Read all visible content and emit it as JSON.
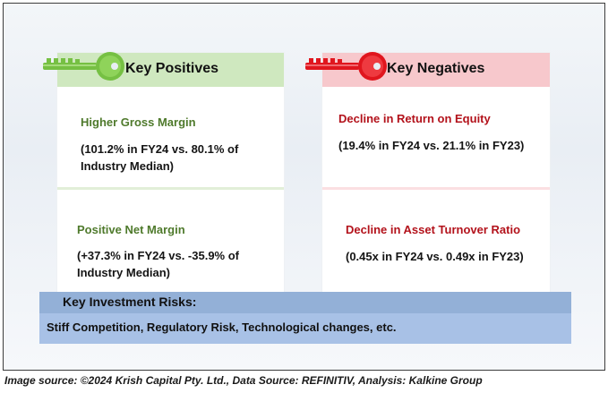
{
  "positives": {
    "heading": "Key Positives",
    "items": [
      {
        "title": "Higher Gross Margin",
        "line1": "(101.2% in FY24 vs. 80.1% of",
        "line2": "Industry Median)"
      },
      {
        "title": "Positive Net Margin",
        "line1": "(+37.3% in FY24 vs. -35.9% of",
        "line2": "Industry Median)"
      }
    ]
  },
  "negatives": {
    "heading": "Key Negatives",
    "items": [
      {
        "title": "Decline in Return on Equity",
        "line1": "(19.4% in FY24 vs. 21.1% in FY23)"
      },
      {
        "title": "Decline in Asset Turnover Ratio",
        "line1": "(0.45x in FY24 vs. 0.49x in FY23)"
      }
    ]
  },
  "risks": {
    "heading": "Key Investment Risks:",
    "text": "Stiff Competition, Regulatory Risk, Technological changes, etc."
  },
  "source": "Image source: ©2024 Krish Capital Pty. Ltd., Data Source: REFINITIV, Analysis: Kalkine Group",
  "colors": {
    "green_key": "#76c043",
    "red_key": "#e0161e",
    "pos_header": "#cfe8bf",
    "neg_header": "#f7c8cc",
    "risk_header": "#93b0d7",
    "risk_body": "#a8c1e6"
  },
  "icons": [
    "green-key-icon",
    "red-key-icon"
  ]
}
